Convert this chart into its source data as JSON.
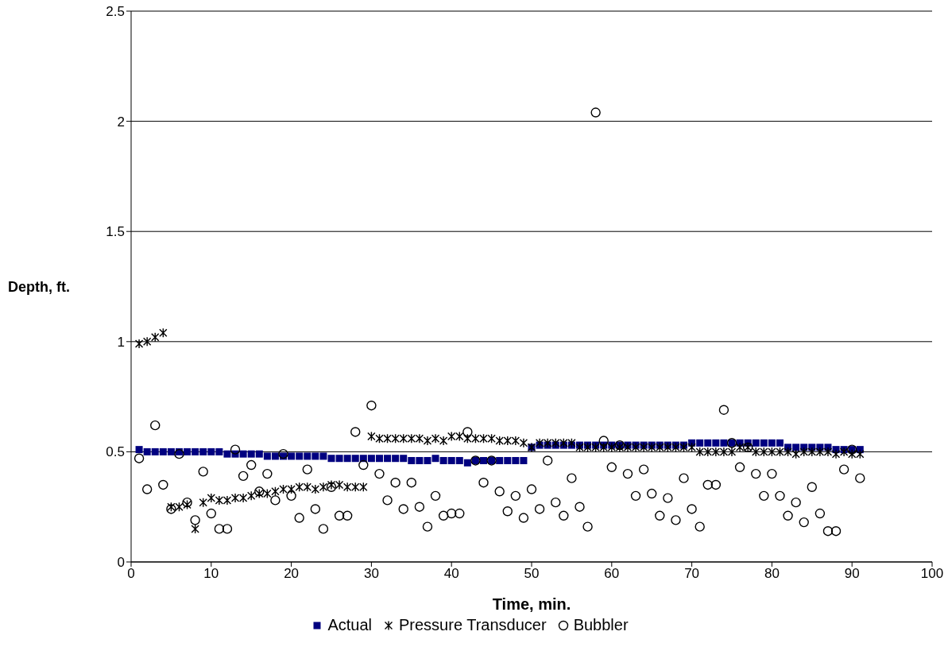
{
  "chart_data": {
    "type": "scatter",
    "xlabel": "Time, min.",
    "ylabel": "Depth, ft.",
    "x": [
      1,
      2,
      3,
      4,
      5,
      6,
      7,
      8,
      9,
      10,
      11,
      12,
      13,
      14,
      15,
      16,
      17,
      18,
      19,
      20,
      21,
      22,
      23,
      24,
      25,
      26,
      27,
      28,
      29,
      30,
      31,
      32,
      33,
      34,
      35,
      36,
      37,
      38,
      39,
      40,
      41,
      42,
      43,
      44,
      45,
      46,
      47,
      48,
      49,
      50,
      51,
      52,
      53,
      54,
      55,
      56,
      57,
      58,
      59,
      60,
      61,
      62,
      63,
      64,
      65,
      66,
      67,
      68,
      69,
      70,
      71,
      72,
      73,
      74,
      75,
      76,
      77,
      78,
      79,
      80,
      81,
      82,
      83,
      84,
      85,
      86,
      87,
      88,
      89,
      90,
      91
    ],
    "series": [
      {
        "name": "Actual",
        "color": "#000080",
        "marker": "square",
        "values": [
          0.51,
          0.5,
          0.5,
          0.5,
          0.5,
          0.5,
          0.5,
          0.5,
          0.5,
          0.5,
          0.5,
          0.49,
          0.49,
          0.49,
          0.49,
          0.49,
          0.48,
          0.48,
          0.48,
          0.48,
          0.48,
          0.48,
          0.48,
          0.48,
          0.47,
          0.47,
          0.47,
          0.47,
          0.47,
          0.47,
          0.47,
          0.47,
          0.47,
          0.47,
          0.46,
          0.46,
          0.46,
          0.47,
          0.46,
          0.46,
          0.46,
          0.45,
          0.46,
          0.46,
          0.46,
          0.46,
          0.46,
          0.46,
          0.46,
          0.52,
          0.53,
          0.53,
          0.53,
          0.53,
          0.53,
          0.53,
          0.53,
          0.53,
          0.53,
          0.53,
          0.53,
          0.53,
          0.53,
          0.53,
          0.53,
          0.53,
          0.53,
          0.53,
          0.53,
          0.54,
          0.54,
          0.54,
          0.54,
          0.54,
          0.54,
          0.54,
          0.54,
          0.54,
          0.54,
          0.54,
          0.54,
          0.52,
          0.52,
          0.52,
          0.52,
          0.52,
          0.52,
          0.51,
          0.51,
          0.51,
          0.51
        ]
      },
      {
        "name": "Pressure Transducer",
        "color": "#000000",
        "marker": "cross",
        "values": [
          0.99,
          1.0,
          1.02,
          1.04,
          0.25,
          0.25,
          0.26,
          0.15,
          0.27,
          0.29,
          0.28,
          0.28,
          0.29,
          0.29,
          0.3,
          0.31,
          0.31,
          0.32,
          0.33,
          0.33,
          0.34,
          0.34,
          0.33,
          0.34,
          0.35,
          0.35,
          0.34,
          0.34,
          0.34,
          0.57,
          0.56,
          0.56,
          0.56,
          0.56,
          0.56,
          0.56,
          0.55,
          0.56,
          0.55,
          0.57,
          0.57,
          0.56,
          0.56,
          0.56,
          0.56,
          0.55,
          0.55,
          0.55,
          0.54,
          0.52,
          0.54,
          0.54,
          0.54,
          0.54,
          0.54,
          0.52,
          0.52,
          0.52,
          0.52,
          0.52,
          0.52,
          0.52,
          0.52,
          0.52,
          0.52,
          0.52,
          0.52,
          0.52,
          0.52,
          0.52,
          0.5,
          0.5,
          0.5,
          0.5,
          0.5,
          0.52,
          0.52,
          0.5,
          0.5,
          0.5,
          0.5,
          0.5,
          0.49,
          0.5,
          0.5,
          0.5,
          0.5,
          0.49,
          0.5,
          0.49,
          0.49
        ]
      },
      {
        "name": "Bubbler",
        "color": "#000000",
        "marker": "circle",
        "values": [
          0.47,
          0.33,
          0.62,
          0.35,
          0.24,
          0.49,
          0.27,
          0.19,
          0.41,
          0.22,
          0.15,
          0.15,
          0.51,
          0.39,
          0.44,
          0.32,
          0.4,
          0.28,
          0.49,
          0.3,
          0.2,
          0.42,
          0.24,
          0.15,
          0.34,
          0.21,
          0.21,
          0.59,
          0.44,
          0.71,
          0.4,
          0.28,
          0.36,
          0.24,
          0.36,
          0.25,
          0.16,
          0.3,
          0.21,
          0.22,
          0.22,
          0.59,
          0.46,
          0.36,
          0.46,
          0.32,
          0.23,
          0.3,
          0.2,
          0.33,
          0.24,
          0.46,
          0.27,
          0.21,
          0.38,
          0.25,
          0.16,
          2.04,
          0.55,
          0.43,
          0.53,
          0.4,
          0.3,
          0.42,
          0.31,
          0.21,
          0.29,
          0.19,
          0.38,
          0.24,
          0.16,
          0.35,
          0.35,
          0.69,
          0.54,
          0.43,
          0.52,
          0.4,
          0.3,
          0.4,
          0.3,
          0.21,
          0.27,
          0.18,
          0.34,
          0.22,
          0.14,
          0.14,
          0.42,
          0.51,
          0.38
        ]
      }
    ],
    "xlim": [
      0,
      100
    ],
    "xticks": [
      0,
      10,
      20,
      30,
      40,
      50,
      60,
      70,
      80,
      90,
      100
    ],
    "ylim": [
      0,
      2.5
    ],
    "yticks": [
      0,
      0.5,
      1,
      1.5,
      2,
      2.5
    ],
    "grid": "y",
    "legend": "bottom"
  }
}
